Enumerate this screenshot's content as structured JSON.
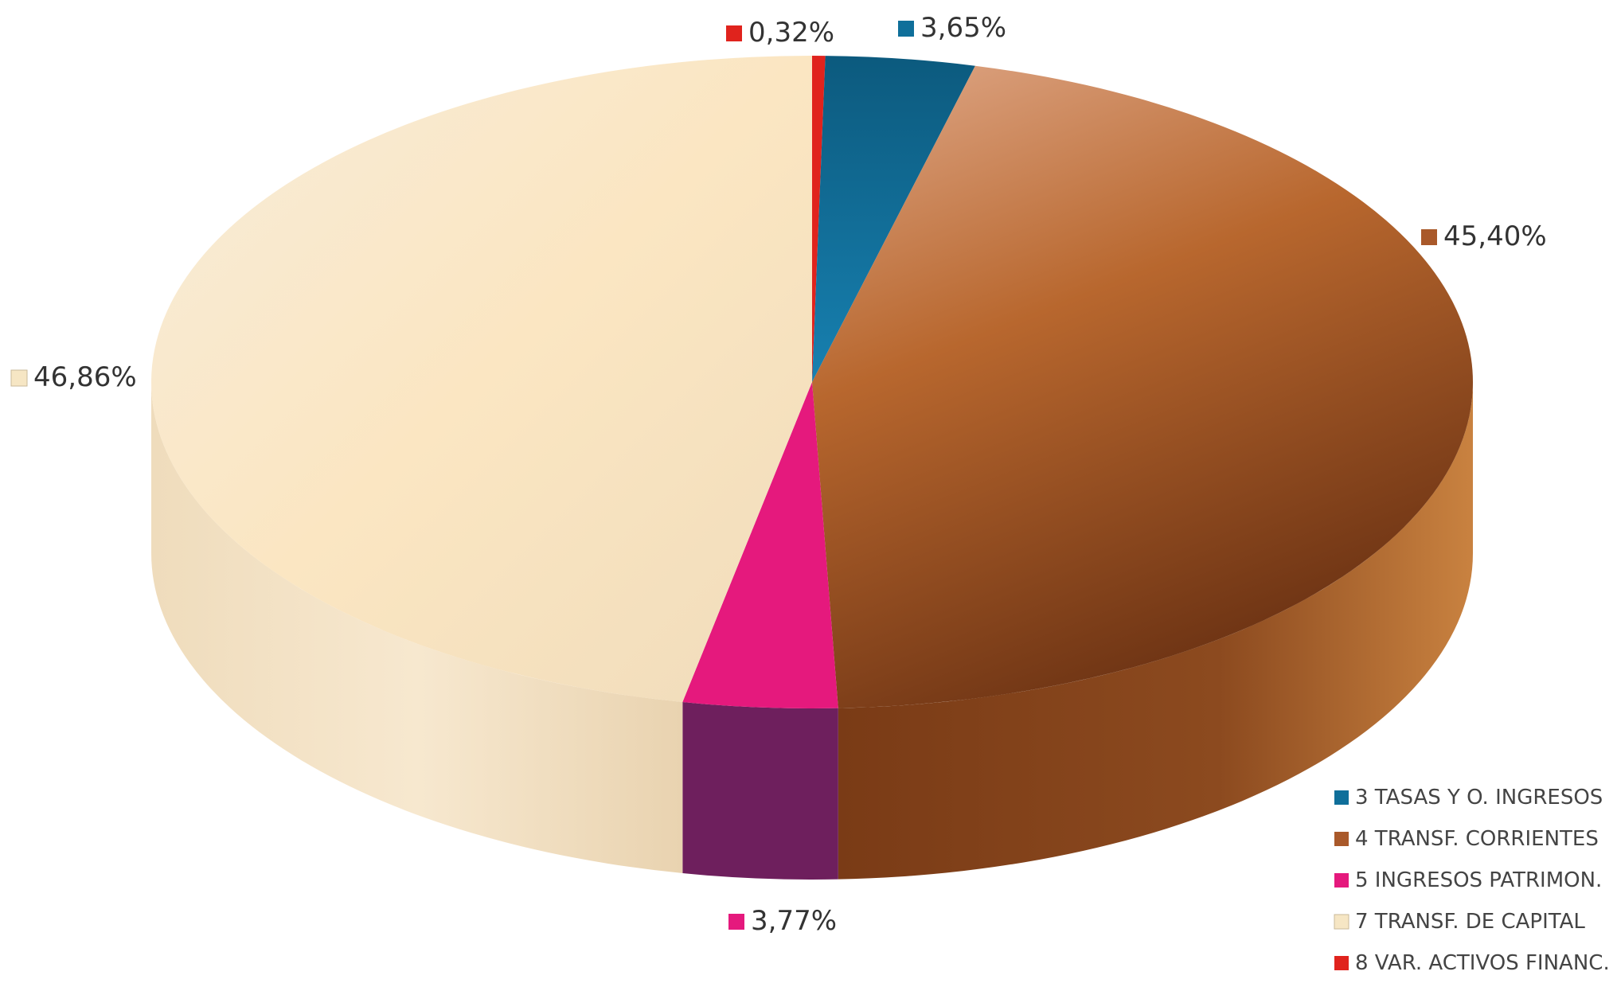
{
  "chart_data": {
    "type": "pie",
    "title": "",
    "slices": [
      {
        "legend": "3 TASAS Y O. INGRESOS",
        "value": 3.65,
        "label": "3,65%",
        "color": "#0f6f9a"
      },
      {
        "legend": "4 TRANSF. CORRIENTES",
        "value": 45.4,
        "label": "45,40%",
        "color": "#a9592a"
      },
      {
        "legend": "5 INGRESOS PATRIMON.",
        "value": 3.77,
        "label": "3,77%",
        "color": "#e5197d"
      },
      {
        "legend": "7 TRANSF. DE CAPITAL",
        "value": 46.86,
        "label": "46,86%",
        "color": "#f6e6c4"
      },
      {
        "legend": "8 VAR. ACTIVOS FINANC.",
        "value": 0.32,
        "label": "0,32%",
        "color": "#e0231d"
      }
    ],
    "legend_position": "bottom-right"
  }
}
